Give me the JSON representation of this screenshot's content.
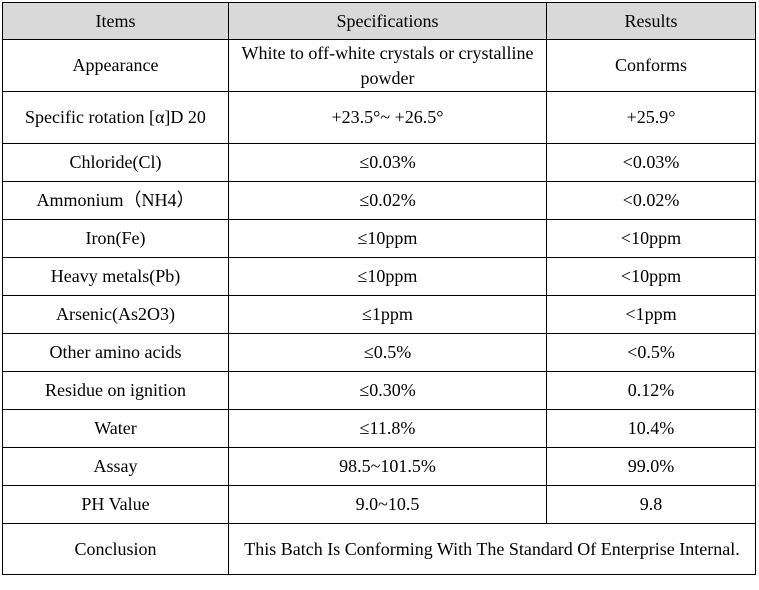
{
  "table": {
    "headers": [
      "Items",
      "Specifications",
      "Results"
    ],
    "rows": [
      {
        "item": "Appearance",
        "spec": "White to off-white crystals or crystalline powder",
        "result": "Conforms"
      },
      {
        "item": "Specific rotation [α]D 20",
        "spec": "+23.5°~ +26.5°",
        "result": "+25.9°"
      },
      {
        "item": "Chloride(Cl)",
        "spec": "≤0.03%",
        "result": "<0.03%"
      },
      {
        "item": "Ammonium（NH4）",
        "spec": "≤0.02%",
        "result": "<0.02%"
      },
      {
        "item": "Iron(Fe)",
        "spec": "≤10ppm",
        "result": "<10ppm"
      },
      {
        "item": "Heavy metals(Pb)",
        "spec": "≤10ppm",
        "result": "<10ppm"
      },
      {
        "item": "Arsenic(As2O3)",
        "spec": "≤1ppm",
        "result": "<1ppm"
      },
      {
        "item": "Other amino acids",
        "spec": "≤0.5%",
        "result": "<0.5%"
      },
      {
        "item": "Residue on ignition",
        "spec": "≤0.30%",
        "result": "0.12%"
      },
      {
        "item": "Water",
        "spec": "≤11.8%",
        "result": "10.4%"
      },
      {
        "item": "Assay",
        "spec": "98.5~101.5%",
        "result": "99.0%"
      },
      {
        "item": "PH Value",
        "spec": "9.0~10.5",
        "result": "9.8"
      }
    ],
    "conclusion": {
      "label": "Conclusion",
      "text": "This Batch Is Conforming With The Standard Of Enterprise Internal."
    }
  },
  "colors": {
    "header_background": "#d9d9d9",
    "border": "#000000",
    "text": "#000000"
  }
}
